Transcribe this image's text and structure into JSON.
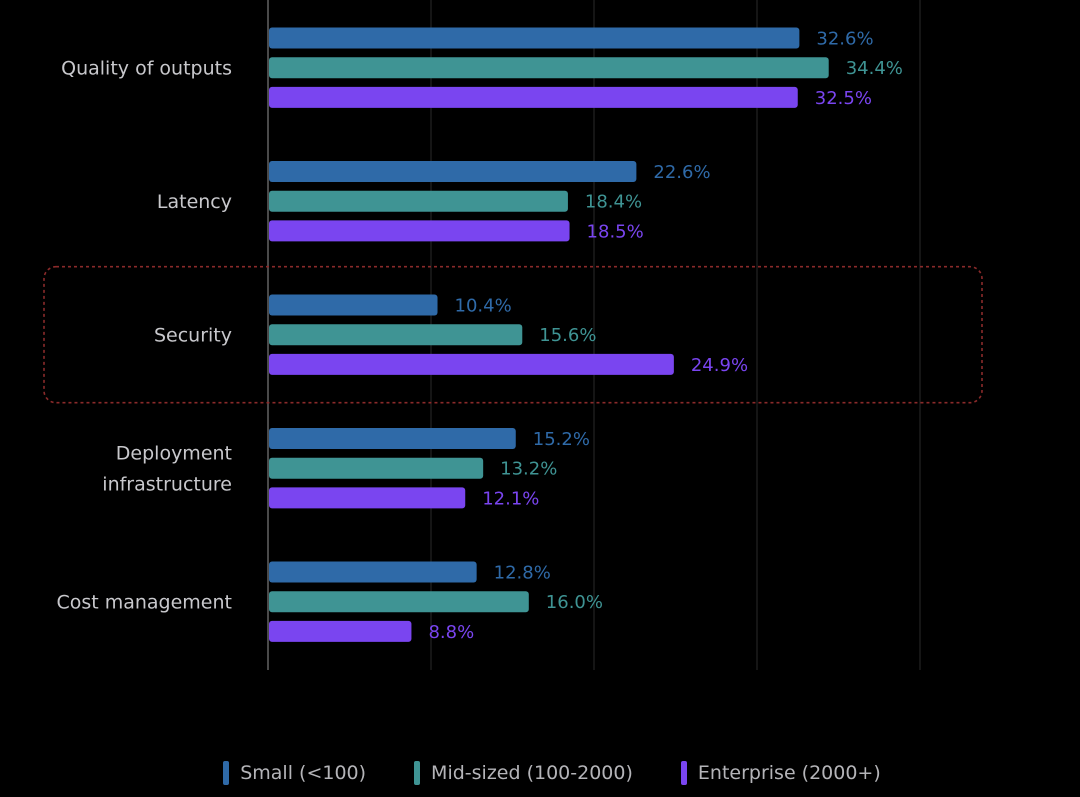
{
  "chart_data": {
    "type": "bar",
    "orientation": "horizontal",
    "categories": [
      "Quality of outputs",
      "Latency",
      "Security",
      "Deployment infrastructure",
      "Cost management"
    ],
    "category_lines": [
      [
        "Quality of outputs"
      ],
      [
        "Latency"
      ],
      [
        "Security"
      ],
      [
        "Deployment",
        "infrastructure"
      ],
      [
        "Cost management"
      ]
    ],
    "series": [
      {
        "name": "Small (<100)",
        "color": "#2f6aa8",
        "values": [
          32.6,
          22.6,
          10.4,
          15.2,
          12.8
        ],
        "labels": [
          "32.6%",
          "22.6%",
          "10.4%",
          "15.2%",
          "12.8%"
        ]
      },
      {
        "name": "Mid-sized (100-2000)",
        "color": "#3f9494",
        "values": [
          34.4,
          18.4,
          15.6,
          13.2,
          16.0
        ],
        "labels": [
          "34.4%",
          "18.4%",
          "15.6%",
          "13.2%",
          "16.0%"
        ]
      },
      {
        "name": "Enterprise (2000+)",
        "color": "#7a45f0",
        "values": [
          32.5,
          18.5,
          24.9,
          12.1,
          8.8
        ],
        "labels": [
          "32.5%",
          "18.5%",
          "24.9%",
          "12.1%",
          "8.8%"
        ]
      }
    ],
    "xlim": [
      0,
      40
    ],
    "grid": true,
    "gridline_values": [
      10,
      20,
      30,
      40
    ],
    "highlighted_category": "Security",
    "legend_position": "bottom-center",
    "title": "",
    "xlabel": "",
    "ylabel": ""
  },
  "colors": {
    "background": "#000000",
    "category_text": "#c8c8cc",
    "legend_text": "#b4b4b8",
    "highlight_border": "#8a2a2a",
    "gridline": "#2a2a2a",
    "axis": "#4a4a4a"
  }
}
